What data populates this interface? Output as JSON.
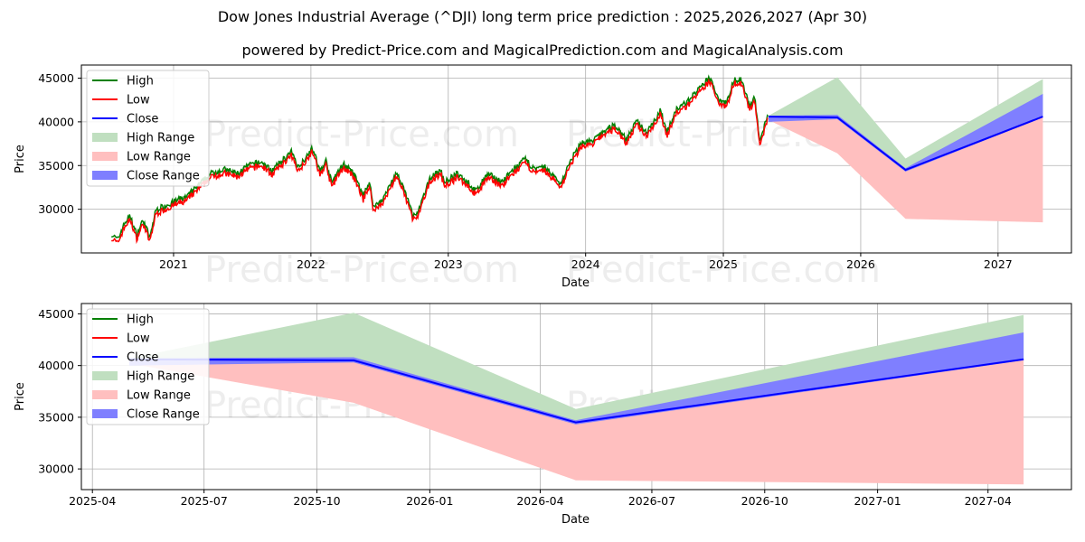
{
  "titles": {
    "line1": "Dow Jones Industrial Average (^DJI) long term price prediction : 2025,2026,2027 (Apr 30)",
    "line2": "powered by Predict-Price.com and MagicalPrediction.com and MagicalAnalysis.com"
  },
  "watermark": "Predict-Price.com",
  "colors": {
    "high": "#008000",
    "low": "#ff0000",
    "close": "#0000ff",
    "high_range": "#c0dfc0",
    "low_range": "#ffbfbf",
    "close_range": "#7f7fff"
  },
  "chart_data": [
    {
      "type": "line",
      "xlabel": "Date",
      "ylabel": "Price",
      "xlim": [
        "2020-05-01",
        "2027-07-15"
      ],
      "ylim": [
        25000,
        46500
      ],
      "yticks": [
        30000,
        35000,
        40000,
        45000
      ],
      "xticks": [
        {
          "date": "2021-01-01",
          "label": "2021"
        },
        {
          "date": "2022-01-01",
          "label": "2022"
        },
        {
          "date": "2023-01-01",
          "label": "2023"
        },
        {
          "date": "2024-01-01",
          "label": "2024"
        },
        {
          "date": "2025-01-01",
          "label": "2025"
        },
        {
          "date": "2026-01-01",
          "label": "2026"
        },
        {
          "date": "2027-01-01",
          "label": "2027"
        }
      ],
      "grid": true,
      "legend": "upper-left",
      "legend_entries": [
        "High",
        "Low",
        "Close",
        "High Range",
        "Low Range",
        "Close Range"
      ],
      "history": [
        [
          "2020-07-20",
          26900
        ],
        [
          "2020-08-05",
          26300
        ],
        [
          "2020-08-25",
          28300
        ],
        [
          "2020-09-08",
          29000
        ],
        [
          "2020-09-25",
          26800
        ],
        [
          "2020-10-12",
          28600
        ],
        [
          "2020-10-30",
          26500
        ],
        [
          "2020-11-15",
          29700
        ],
        [
          "2020-12-15",
          30300
        ],
        [
          "2021-01-15",
          30900
        ],
        [
          "2021-02-05",
          31200
        ],
        [
          "2021-03-10",
          32600
        ],
        [
          "2021-04-15",
          34000
        ],
        [
          "2021-05-15",
          34300
        ],
        [
          "2021-06-20",
          33900
        ],
        [
          "2021-07-20",
          34800
        ],
        [
          "2021-08-20",
          35200
        ],
        [
          "2021-09-20",
          34200
        ],
        [
          "2021-10-20",
          35500
        ],
        [
          "2021-11-10",
          36300
        ],
        [
          "2021-11-30",
          34600
        ],
        [
          "2021-12-28",
          36400
        ],
        [
          "2022-01-05",
          36800
        ],
        [
          "2022-01-25",
          34100
        ],
        [
          "2022-02-10",
          35300
        ],
        [
          "2022-02-25",
          32800
        ],
        [
          "2022-03-28",
          35000
        ],
        [
          "2022-04-25",
          33800
        ],
        [
          "2022-05-20",
          31300
        ],
        [
          "2022-06-05",
          32900
        ],
        [
          "2022-06-17",
          30000
        ],
        [
          "2022-07-15",
          31200
        ],
        [
          "2022-08-16",
          34000
        ],
        [
          "2022-09-10",
          31500
        ],
        [
          "2022-09-30",
          29000
        ],
        [
          "2022-10-12",
          29300
        ],
        [
          "2022-11-15",
          33500
        ],
        [
          "2022-12-12",
          34200
        ],
        [
          "2022-12-22",
          32900
        ],
        [
          "2023-01-25",
          33800
        ],
        [
          "2023-02-20",
          33000
        ],
        [
          "2023-03-15",
          31800
        ],
        [
          "2023-04-15",
          33800
        ],
        [
          "2023-05-25",
          32900
        ],
        [
          "2023-06-20",
          34200
        ],
        [
          "2023-07-25",
          35500
        ],
        [
          "2023-08-20",
          34300
        ],
        [
          "2023-09-15",
          34600
        ],
        [
          "2023-10-27",
          32700
        ],
        [
          "2023-11-20",
          35100
        ],
        [
          "2023-12-20",
          37400
        ],
        [
          "2024-01-20",
          37600
        ],
        [
          "2024-02-20",
          38800
        ],
        [
          "2024-03-20",
          39400
        ],
        [
          "2024-04-18",
          37800
        ],
        [
          "2024-05-17",
          39900
        ],
        [
          "2024-06-10",
          38600
        ],
        [
          "2024-07-17",
          41000
        ],
        [
          "2024-08-05",
          38700
        ],
        [
          "2024-08-30",
          41200
        ],
        [
          "2024-09-30",
          42200
        ],
        [
          "2024-10-20",
          43200
        ],
        [
          "2024-11-08",
          43900
        ],
        [
          "2024-11-25",
          44900
        ],
        [
          "2024-12-20",
          42400
        ],
        [
          "2025-01-10",
          42000
        ],
        [
          "2025-01-30",
          44700
        ],
        [
          "2025-02-20",
          44500
        ],
        [
          "2025-03-12",
          41500
        ],
        [
          "2025-03-25",
          42600
        ],
        [
          "2025-04-08",
          37600
        ],
        [
          "2025-04-20",
          39200
        ],
        [
          "2025-04-30",
          40500
        ]
      ],
      "forecast": {
        "dates": [
          "2025-05-01",
          "2025-10-31",
          "2026-04-30",
          "2027-04-30"
        ],
        "high": [
          40700,
          45100,
          35800,
          44900
        ],
        "low": [
          40200,
          36400,
          28900,
          28500
        ],
        "close_upper": [
          40700,
          40800,
          34700,
          43200
        ],
        "close_lower": [
          40000,
          40300,
          34300,
          40500
        ],
        "close": [
          40600,
          40500,
          34500,
          40600
        ]
      }
    },
    {
      "type": "line",
      "xlabel": "Date",
      "ylabel": "Price",
      "xlim": [
        "2025-03-23",
        "2027-06-08"
      ],
      "ylim": [
        28000,
        46000
      ],
      "yticks": [
        30000,
        35000,
        40000,
        45000
      ],
      "xticks": [
        {
          "date": "2025-04-01",
          "label": "2025-04"
        },
        {
          "date": "2025-07-01",
          "label": "2025-07"
        },
        {
          "date": "2025-10-01",
          "label": "2025-10"
        },
        {
          "date": "2026-01-01",
          "label": "2026-01"
        },
        {
          "date": "2026-04-01",
          "label": "2026-04"
        },
        {
          "date": "2026-07-01",
          "label": "2026-07"
        },
        {
          "date": "2026-10-01",
          "label": "2026-10"
        },
        {
          "date": "2027-01-01",
          "label": "2027-01"
        },
        {
          "date": "2027-04-01",
          "label": "2027-04"
        }
      ],
      "grid": true,
      "legend": "upper-left",
      "legend_entries": [
        "High",
        "Low",
        "Close",
        "High Range",
        "Low Range",
        "Close Range"
      ],
      "forecast": {
        "dates": [
          "2025-05-01",
          "2025-10-31",
          "2026-04-30",
          "2027-04-30"
        ],
        "high": [
          40700,
          45100,
          35800,
          44900
        ],
        "low": [
          40200,
          36400,
          28900,
          28500
        ],
        "close_upper": [
          40700,
          40800,
          34700,
          43200
        ],
        "close_lower": [
          40000,
          40300,
          34300,
          40500
        ],
        "close": [
          40600,
          40500,
          34500,
          40600
        ]
      }
    }
  ]
}
